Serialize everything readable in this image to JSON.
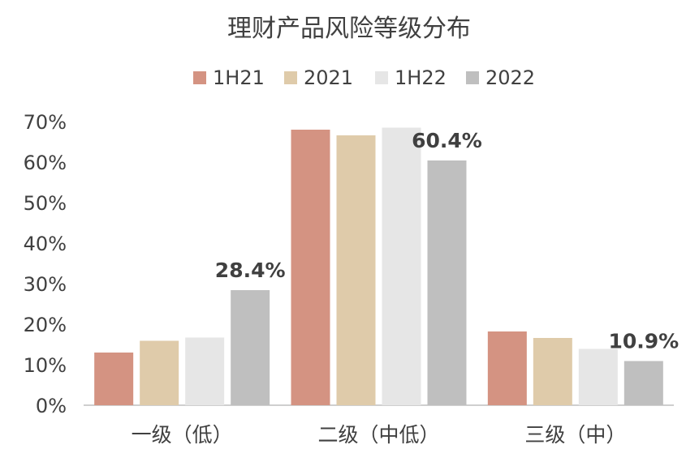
{
  "chart_data": {
    "type": "bar",
    "title": "理财产品风险等级分布",
    "categories": [
      "一级（低）",
      "二级（中低）",
      "三级（中）"
    ],
    "series": [
      {
        "name": "1H21",
        "color": "#d49382",
        "values": [
          13.0,
          68.0,
          18.2
        ]
      },
      {
        "name": "2021",
        "color": "#dfcbaa",
        "values": [
          15.9,
          66.6,
          16.6
        ]
      },
      {
        "name": "1H22",
        "color": "#e6e6e6",
        "values": [
          16.7,
          68.5,
          13.9
        ]
      },
      {
        "name": "2022",
        "color": "#bfbfbf",
        "values": [
          28.4,
          60.4,
          10.9
        ]
      }
    ],
    "data_labels": [
      {
        "series": "2022",
        "category_index": 0,
        "text": "28.4%"
      },
      {
        "series": "2022",
        "category_index": 1,
        "text": "60.4%"
      },
      {
        "series": "2022",
        "category_index": 2,
        "text": "10.9%"
      }
    ],
    "ylim": [
      0,
      70
    ],
    "yticks": [
      0,
      10,
      20,
      30,
      40,
      50,
      60,
      70
    ],
    "ytick_labels": [
      "0%",
      "10%",
      "20%",
      "30%",
      "40%",
      "50%",
      "60%",
      "70%"
    ],
    "xlabel": "",
    "ylabel": "",
    "grid": false,
    "legend_position": "top-center",
    "axis_color": "#bfbfbf",
    "text_color": "#404040"
  }
}
